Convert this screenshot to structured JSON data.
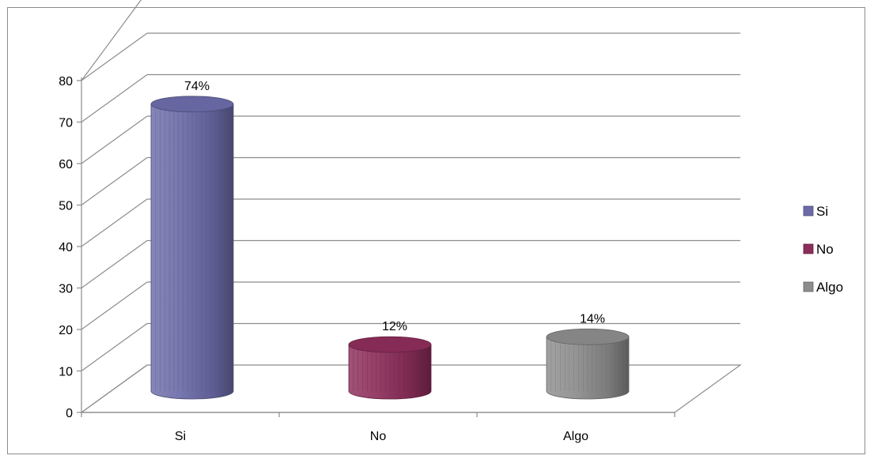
{
  "chart_data": {
    "type": "bar",
    "style": "3d-cylinder",
    "categories": [
      "Si",
      "No",
      "Algo"
    ],
    "values": [
      74,
      12,
      14
    ],
    "data_labels": [
      "74%",
      "12%",
      "14%"
    ],
    "colors": [
      "#6b6ba8",
      "#8c2d5a",
      "#8c8c8c"
    ],
    "title": "",
    "xlabel": "",
    "ylabel": "",
    "ylim": [
      0,
      80
    ],
    "yticks": [
      0,
      10,
      20,
      30,
      40,
      50,
      60,
      70,
      80
    ],
    "grid": true,
    "legend": {
      "placement": "right",
      "entries": [
        "Si",
        "No",
        "Algo"
      ]
    }
  }
}
